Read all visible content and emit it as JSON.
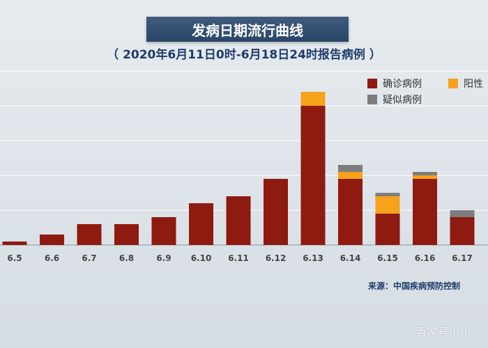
{
  "header": {
    "title": "发病日期流行曲线",
    "subtitle": "（ 2020年6月11日0时-6月18日24时报告病例 ）"
  },
  "legend": {
    "confirmed": "确诊病例",
    "positive": "阳性",
    "suspected": "疑似病例"
  },
  "source": "来源：中国疾病预防控制",
  "watermark": "百家号 | 小",
  "colors": {
    "confirmed": "#8f1a10",
    "positive": "#f7a21b",
    "suspected": "#7d7d7d"
  },
  "chart_data": {
    "type": "bar",
    "stacked": true,
    "categories": [
      "6.5",
      "6.6",
      "6.7",
      "6.8",
      "6.9",
      "6.10",
      "6.11",
      "6.12",
      "6.13",
      "6.14",
      "6.15",
      "6.16",
      "6.17"
    ],
    "series": [
      {
        "name": "确诊病例",
        "values": [
          1,
          3,
          6,
          6,
          8,
          12,
          14,
          19,
          40,
          19,
          9,
          19,
          8
        ]
      },
      {
        "name": "阳性",
        "values": [
          0,
          0,
          0,
          0,
          0,
          0,
          0,
          0,
          4,
          2,
          5,
          1,
          0
        ]
      },
      {
        "name": "疑似病例",
        "values": [
          0,
          0,
          0,
          0,
          0,
          0,
          0,
          0,
          0,
          2,
          1,
          1,
          2
        ]
      }
    ],
    "ylim": [
      0,
      50
    ],
    "grid": true
  }
}
